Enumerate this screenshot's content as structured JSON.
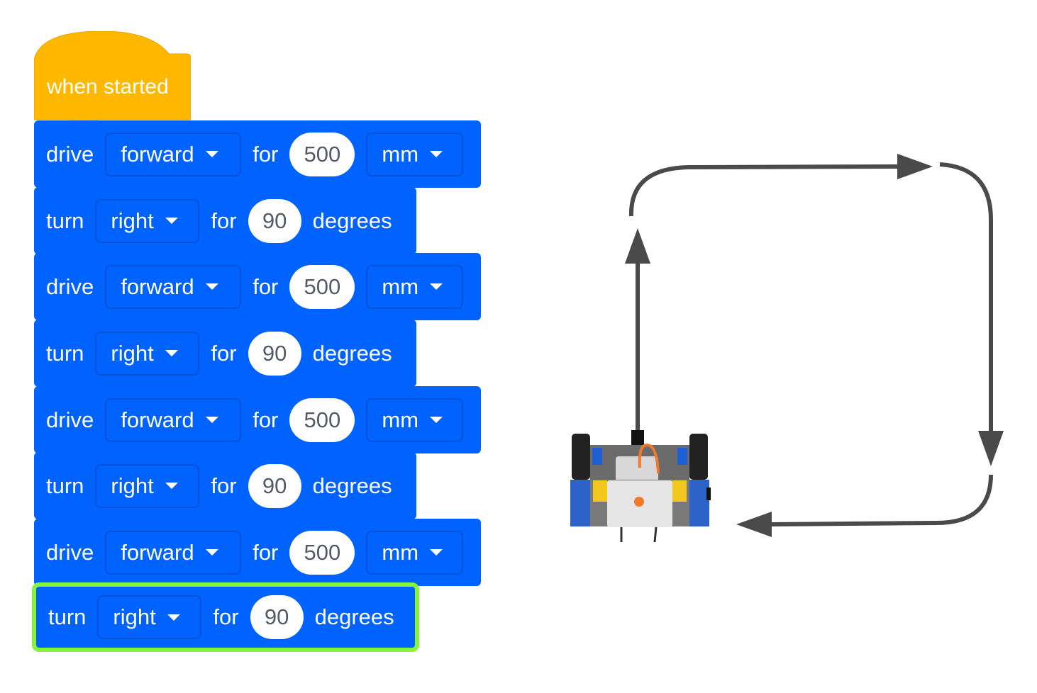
{
  "program": {
    "hat": {
      "label": "when started",
      "color": "#ffb800"
    },
    "block_color": "#0062ff",
    "highlight_color": "#85f53a",
    "blocks": [
      {
        "type": "drive",
        "keyword": "drive",
        "direction": "forward",
        "for": "for",
        "value": "500",
        "unit": "mm"
      },
      {
        "type": "turn",
        "keyword": "turn",
        "direction": "right",
        "for": "for",
        "value": "90",
        "unit": "degrees"
      },
      {
        "type": "drive",
        "keyword": "drive",
        "direction": "forward",
        "for": "for",
        "value": "500",
        "unit": "mm"
      },
      {
        "type": "turn",
        "keyword": "turn",
        "direction": "right",
        "for": "for",
        "value": "90",
        "unit": "degrees"
      },
      {
        "type": "drive",
        "keyword": "drive",
        "direction": "forward",
        "for": "for",
        "value": "500",
        "unit": "mm"
      },
      {
        "type": "turn",
        "keyword": "turn",
        "direction": "right",
        "for": "for",
        "value": "90",
        "unit": "degrees"
      },
      {
        "type": "drive",
        "keyword": "drive",
        "direction": "forward",
        "for": "for",
        "value": "500",
        "unit": "mm"
      },
      {
        "type": "turn",
        "keyword": "turn",
        "direction": "right",
        "for": "for",
        "value": "90",
        "unit": "degrees",
        "highlighted": true
      }
    ]
  },
  "path_diagram": {
    "arrow_color": "#4a4a4a",
    "icon": "robot-top-view"
  }
}
